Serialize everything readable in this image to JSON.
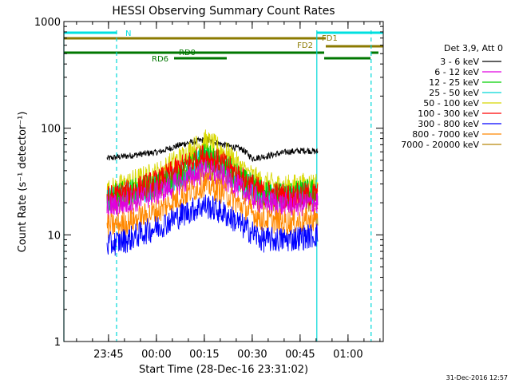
{
  "chart_data": {
    "type": "line",
    "title": "HESSI Observing Summary Count Rates",
    "xlabel": "Start Time (28-Dec-16 23:31:02)",
    "ylabel": "Count Rate (s⁻¹ detector⁻¹)",
    "y_scale": "log",
    "ylim": [
      1,
      1000
    ],
    "y_ticks": [
      {
        "value": 1,
        "label": "1"
      },
      {
        "value": 10,
        "label": "10"
      },
      {
        "value": 100,
        "label": "100"
      },
      {
        "value": 1000,
        "label": "1000"
      }
    ],
    "x_unit": "minutes from 23:31:02",
    "xlim": [
      0,
      100
    ],
    "x_ticks": [
      {
        "value": 13.97,
        "label": "23:45"
      },
      {
        "value": 28.97,
        "label": "00:00"
      },
      {
        "value": 43.97,
        "label": "00:15"
      },
      {
        "value": 58.97,
        "label": "00:30"
      },
      {
        "value": 73.97,
        "label": "00:45"
      },
      {
        "value": 88.97,
        "label": "01:00"
      }
    ],
    "legend_title": "Det 3,9, Att 0",
    "legend_position": "right",
    "series": [
      {
        "name": "3 - 6 keV",
        "color": "#000000",
        "values": [
          [
            13.5,
            52
          ],
          [
            20,
            55
          ],
          [
            30,
            60
          ],
          [
            38,
            72
          ],
          [
            44,
            78
          ],
          [
            50,
            70
          ],
          [
            56,
            63
          ],
          [
            59,
            52
          ],
          [
            64,
            55
          ],
          [
            70,
            60
          ],
          [
            76,
            62
          ],
          [
            79.5,
            60
          ]
        ]
      },
      {
        "name": "6 - 12 keV",
        "color": "#e000e0",
        "values": [
          [
            13.5,
            18
          ],
          [
            20,
            20
          ],
          [
            30,
            25
          ],
          [
            38,
            32
          ],
          [
            44,
            40
          ],
          [
            50,
            34
          ],
          [
            56,
            26
          ],
          [
            62,
            20
          ],
          [
            70,
            19
          ],
          [
            79.5,
            20
          ]
        ]
      },
      {
        "name": "12 - 25 keV",
        "color": "#00d000",
        "values": [
          [
            13.5,
            22
          ],
          [
            20,
            25
          ],
          [
            30,
            30
          ],
          [
            38,
            40
          ],
          [
            44,
            55
          ],
          [
            50,
            45
          ],
          [
            56,
            32
          ],
          [
            62,
            25
          ],
          [
            70,
            24
          ],
          [
            79.5,
            26
          ]
        ]
      },
      {
        "name": "25 - 50 keV",
        "color": "#00d8d8",
        "values": [
          [
            13.5,
            21
          ],
          [
            20,
            24
          ],
          [
            30,
            29
          ],
          [
            38,
            38
          ],
          [
            44,
            52
          ],
          [
            50,
            42
          ],
          [
            56,
            30
          ],
          [
            62,
            24
          ],
          [
            70,
            23
          ],
          [
            79.5,
            25
          ]
        ]
      },
      {
        "name": "50 - 100 keV",
        "color": "#d8d800",
        "values": [
          [
            13.5,
            25
          ],
          [
            20,
            30
          ],
          [
            30,
            38
          ],
          [
            38,
            55
          ],
          [
            44,
            75
          ],
          [
            50,
            60
          ],
          [
            56,
            40
          ],
          [
            62,
            30
          ],
          [
            70,
            28
          ],
          [
            79.5,
            30
          ]
        ]
      },
      {
        "name": "100 - 300 keV",
        "color": "#ff0000",
        "values": [
          [
            13.5,
            22
          ],
          [
            20,
            25
          ],
          [
            30,
            32
          ],
          [
            38,
            45
          ],
          [
            44,
            55
          ],
          [
            50,
            46
          ],
          [
            56,
            33
          ],
          [
            62,
            25
          ],
          [
            70,
            23
          ],
          [
            79.5,
            24
          ]
        ]
      },
      {
        "name": "300 - 800 keV",
        "color": "#0000ff",
        "values": [
          [
            13.5,
            8
          ],
          [
            20,
            9
          ],
          [
            30,
            12
          ],
          [
            38,
            16
          ],
          [
            44,
            19
          ],
          [
            50,
            16
          ],
          [
            56,
            12
          ],
          [
            62,
            9
          ],
          [
            70,
            9
          ],
          [
            79.5,
            10
          ]
        ]
      },
      {
        "name": "800 - 7000 keV",
        "color": "#ff8800",
        "values": [
          [
            13.5,
            12
          ],
          [
            20,
            13
          ],
          [
            30,
            17
          ],
          [
            38,
            24
          ],
          [
            44,
            30
          ],
          [
            50,
            25
          ],
          [
            56,
            18
          ],
          [
            62,
            14
          ],
          [
            70,
            13
          ],
          [
            79.5,
            14
          ]
        ]
      },
      {
        "name": "7000 - 20000 keV",
        "color": "#b8860b",
        "values": [
          [
            13.5,
            20
          ],
          [
            20,
            22
          ],
          [
            30,
            28
          ],
          [
            38,
            36
          ],
          [
            44,
            45
          ],
          [
            50,
            38
          ],
          [
            56,
            28
          ],
          [
            62,
            22
          ],
          [
            70,
            21
          ],
          [
            79.5,
            22
          ]
        ]
      }
    ],
    "bar_annotations": [
      {
        "label": "N",
        "color": "#00e0e0",
        "segments": [
          [
            0,
            16.5
          ],
          [
            79.2,
            100
          ]
        ]
      },
      {
        "label": "FD1",
        "color": "#8b7a00",
        "segments": [
          [
            0,
            82
          ]
        ]
      },
      {
        "label": "FD2",
        "color": "#8b7a00",
        "segments": [
          [
            82,
            100
          ]
        ]
      },
      {
        "label": "RD0",
        "color": "#007700",
        "segments": [
          [
            0,
            34
          ],
          [
            34,
            60
          ],
          [
            60,
            81.5
          ],
          [
            96,
            98.5
          ]
        ]
      },
      {
        "label": "RD6",
        "color": "#007700",
        "segments": [
          [
            34.5,
            51
          ],
          [
            81.5,
            96
          ]
        ]
      }
    ],
    "vertical_markers": [
      {
        "x": 0,
        "color": "#00d8d8",
        "style": "solid"
      },
      {
        "x": 16.5,
        "color": "#00d8d8",
        "style": "dashed"
      },
      {
        "x": 79.2,
        "color": "#00d8d8",
        "style": "solid"
      },
      {
        "x": 96.2,
        "color": "#00d8d8",
        "style": "dashed"
      }
    ],
    "timestamp": "31-Dec-2016 12:57"
  }
}
